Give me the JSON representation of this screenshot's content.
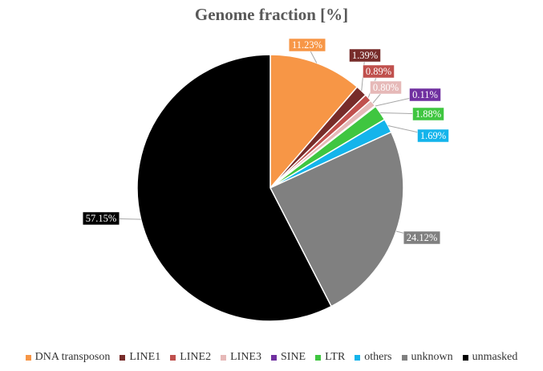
{
  "chart_data": {
    "type": "pie",
    "title": "Genome fraction [%]",
    "slices": [
      {
        "label": "DNA transposon",
        "value": 11.23,
        "display": "11.23%",
        "color": "#f79646"
      },
      {
        "label": "LINE1",
        "value": 1.39,
        "display": "1.39%",
        "color": "#772c2a"
      },
      {
        "label": "LINE2",
        "value": 0.89,
        "display": "0.89%",
        "color": "#c0504d"
      },
      {
        "label": "LINE3",
        "value": 0.8,
        "display": "0.80%",
        "color": "#e6b9b8"
      },
      {
        "label": "SINE",
        "value": 0.11,
        "display": "0.11%",
        "color": "#7030a0"
      },
      {
        "label": "LTR",
        "value": 1.88,
        "display": "1.88%",
        "color": "#3fc640"
      },
      {
        "label": "others",
        "value": 1.69,
        "display": "1.69%",
        "color": "#14b4eb"
      },
      {
        "label": "unknown",
        "value": 24.12,
        "display": "24.12%",
        "color": "#808080"
      },
      {
        "label": "unmasked",
        "value": 57.15,
        "display": "57.15%",
        "color": "#000000"
      }
    ],
    "legend_position": "bottom"
  }
}
